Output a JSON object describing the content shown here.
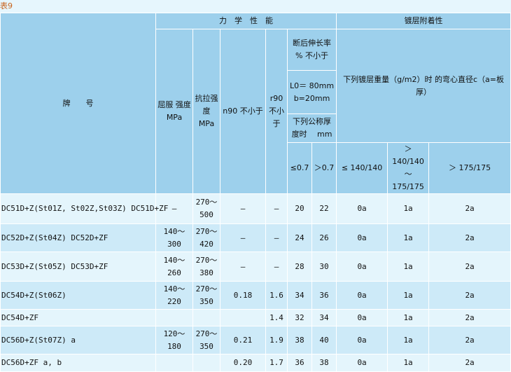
{
  "title": "表9",
  "header": {
    "brand": "牌　　号",
    "mech": "力　学　性　能",
    "coating": "镀层附着性",
    "yield": "屈服 强度　　MPa",
    "tensile": "抗拉强度 MPa",
    "n90": "n90 不小于",
    "r90": "r90 不小于",
    "elong": "断后伸长率　　% 不小于",
    "l0": "L0＝ 80mm　 b=20mm",
    "thick": "下列公称厚度时　 mm",
    "bend": "下列镀层重量（g/m2）时 的弯心直径c（a=板厚）",
    "le07": "≤0.7",
    "gt07": "＞0.7",
    "c1": "≤ 140/140",
    "c2": "＞140/140 ～ 175/175",
    "c3": "＞ 175/175"
  },
  "rows": [
    {
      "brand": "DC51D+Z(St01Z, St02Z,St03Z) DC51D+ZF",
      "yield": "—",
      "tensile": "270～500",
      "n90": "—",
      "r90": "—",
      "e1": "20",
      "e2": "22",
      "c1": "0a",
      "c2": "1a",
      "c3": "2a"
    },
    {
      "brand": "DC52D+Z(St04Z) DC52D+ZF",
      "yield": "140～300",
      "tensile": "270～420",
      "n90": "—",
      "r90": "—",
      "e1": "24",
      "e2": "26",
      "c1": "0a",
      "c2": "1a",
      "c3": "2a"
    },
    {
      "brand": "DC53D+Z(St05Z) DC53D+ZF",
      "yield": "140～260",
      "tensile": "270～380",
      "n90": "—",
      "r90": "—",
      "e1": "28",
      "e2": "30",
      "c1": "0a",
      "c2": "1a",
      "c3": "2a"
    },
    {
      "brand": "DC54D+Z(St06Z)",
      "yield": "140～220",
      "tensile": "270～350",
      "n90": "0.18",
      "r90": "1.6",
      "e1": "34",
      "e2": "36",
      "c1": "0a",
      "c2": "1a",
      "c3": "2a"
    },
    {
      "brand": "DC54D+ZF",
      "yield": "",
      "tensile": "",
      "n90": "",
      "r90": "1.4",
      "e1": "32",
      "e2": "34",
      "c1": "0a",
      "c2": "1a",
      "c3": "2a"
    },
    {
      "brand": "DC56D+Z(St07Z) a",
      "yield": "120～180",
      "tensile": "270～350",
      "n90": "0.21",
      "r90": "1.9",
      "e1": "38",
      "e2": "40",
      "c1": "0a",
      "c2": "1a",
      "c3": "2a"
    },
    {
      "brand": "DC56D+ZF a, b",
      "yield": "",
      "tensile": "",
      "n90": "0.20",
      "r90": "1.7",
      "e1": "36",
      "e2": "38",
      "c1": "0a",
      "c2": "1a",
      "c3": "2a"
    }
  ]
}
